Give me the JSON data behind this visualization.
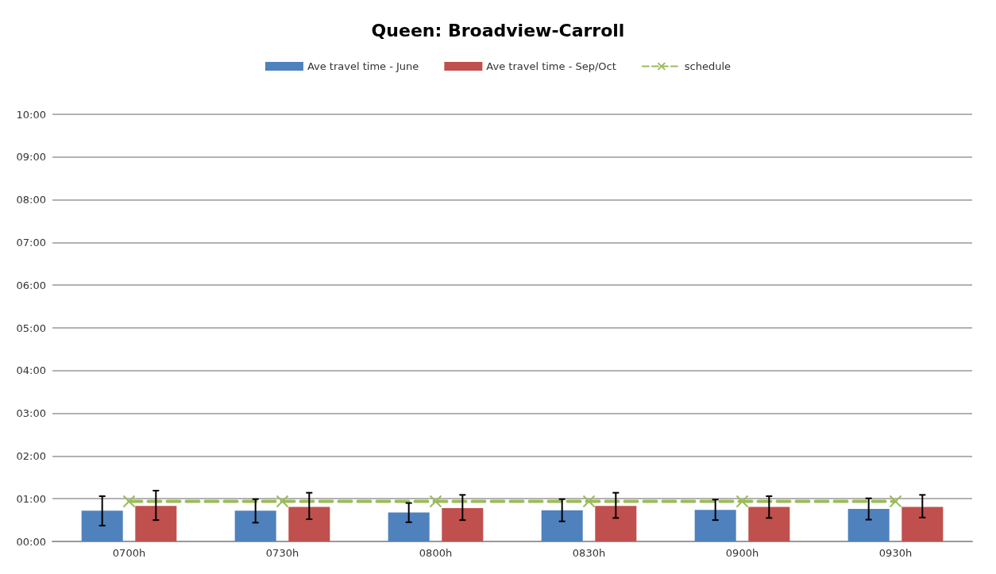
{
  "chart_data": {
    "type": "bar",
    "title": "Queen: Broadview-Carroll",
    "categories": [
      "0700h",
      "0730h",
      "0800h",
      "0830h",
      "0900h",
      "0930h"
    ],
    "series": [
      {
        "name": "Ave travel time - June",
        "color": "#4f81bd",
        "values": [
          0.72,
          0.72,
          0.68,
          0.73,
          0.74,
          0.76
        ],
        "errors": [
          [
            0.37,
            1.06
          ],
          [
            0.44,
            0.99
          ],
          [
            0.45,
            0.9
          ],
          [
            0.47,
            0.99
          ],
          [
            0.5,
            0.98
          ],
          [
            0.51,
            1.01
          ]
        ]
      },
      {
        "name": "Ave travel time - Sep/Oct",
        "color": "#c0504d",
        "values": [
          0.83,
          0.81,
          0.78,
          0.83,
          0.81,
          0.81
        ],
        "errors": [
          [
            0.5,
            1.19
          ],
          [
            0.52,
            1.14
          ],
          [
            0.5,
            1.09
          ],
          [
            0.55,
            1.14
          ],
          [
            0.55,
            1.06
          ],
          [
            0.56,
            1.09
          ]
        ]
      },
      {
        "name": "schedule",
        "type": "line",
        "color": "#9bbb59",
        "values": [
          0.94,
          0.94,
          0.94,
          0.94,
          0.94,
          0.94
        ],
        "marker": "cross",
        "line_style": "dashed"
      }
    ],
    "ylim": [
      0,
      10
    ],
    "yticks": [
      {
        "value": 0,
        "label": "00:00"
      },
      {
        "value": 1,
        "label": "01:00"
      },
      {
        "value": 2,
        "label": "02:00"
      },
      {
        "value": 3,
        "label": "03:00"
      },
      {
        "value": 4,
        "label": "04:00"
      },
      {
        "value": 5,
        "label": "05:00"
      },
      {
        "value": 6,
        "label": "06:00"
      },
      {
        "value": 7,
        "label": "07:00"
      },
      {
        "value": 8,
        "label": "08:00"
      },
      {
        "value": 9,
        "label": "09:00"
      },
      {
        "value": 10,
        "label": "10:00"
      }
    ],
    "grid": "y",
    "legend": "top"
  }
}
